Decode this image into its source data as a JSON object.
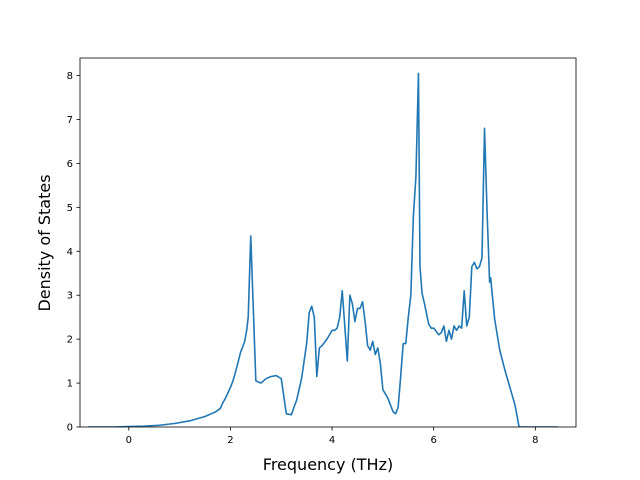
{
  "chart_data": {
    "type": "line",
    "title": "",
    "xlabel": "Frequency (THz)",
    "ylabel": "Density of States",
    "xlim": [
      -0.96,
      8.8
    ],
    "ylim": [
      0,
      8.4
    ],
    "xticks": [
      0,
      2,
      4,
      6,
      8
    ],
    "yticks": [
      0,
      1,
      2,
      3,
      4,
      5,
      6,
      7,
      8
    ],
    "grid": false,
    "series": [
      {
        "color": "#1f77b4",
        "x": [
          -0.8,
          -0.3,
          0,
          0.3,
          0.6,
          0.9,
          1.2,
          1.5,
          1.7,
          1.8,
          1.85,
          1.9,
          2.0,
          2.05,
          2.1,
          2.2,
          2.25,
          2.28,
          2.32,
          2.35,
          2.4,
          2.5,
          2.6,
          2.7,
          2.8,
          2.9,
          3.0,
          3.1,
          3.2,
          3.25,
          3.3,
          3.4,
          3.5,
          3.55,
          3.6,
          3.65,
          3.7,
          3.75,
          3.8,
          3.9,
          4.0,
          4.05,
          4.1,
          4.15,
          4.2,
          4.25,
          4.3,
          4.35,
          4.4,
          4.45,
          4.5,
          4.55,
          4.6,
          4.65,
          4.7,
          4.75,
          4.8,
          4.85,
          4.9,
          4.95,
          5.0,
          5.1,
          5.2,
          5.25,
          5.3,
          5.35,
          5.4,
          5.45,
          5.5,
          5.55,
          5.6,
          5.65,
          5.7,
          5.73,
          5.77,
          5.82,
          5.9,
          5.95,
          6.0,
          6.1,
          6.15,
          6.2,
          6.25,
          6.3,
          6.35,
          6.4,
          6.45,
          6.5,
          6.55,
          6.6,
          6.65,
          6.7,
          6.75,
          6.8,
          6.85,
          6.9,
          6.95,
          7.0,
          7.05,
          7.1,
          7.12,
          7.2,
          7.3,
          7.4,
          7.5,
          7.6,
          7.68,
          7.72,
          7.9,
          8.45
        ],
        "y": [
          0,
          0,
          0.01,
          0.02,
          0.04,
          0.08,
          0.14,
          0.24,
          0.34,
          0.42,
          0.55,
          0.65,
          0.9,
          1.05,
          1.25,
          1.7,
          1.85,
          1.95,
          2.2,
          2.5,
          4.35,
          1.05,
          1.0,
          1.1,
          1.15,
          1.17,
          1.1,
          0.3,
          0.28,
          0.45,
          0.6,
          1.1,
          1.9,
          2.6,
          2.75,
          2.5,
          1.15,
          1.8,
          1.85,
          2.0,
          2.2,
          2.2,
          2.25,
          2.5,
          3.1,
          2.3,
          1.5,
          3.0,
          2.8,
          2.4,
          2.7,
          2.7,
          2.85,
          2.4,
          1.85,
          1.75,
          1.95,
          1.65,
          1.8,
          1.45,
          0.85,
          0.65,
          0.35,
          0.3,
          0.45,
          1.15,
          1.9,
          1.9,
          2.5,
          3.0,
          4.8,
          5.7,
          8.05,
          3.65,
          3.05,
          2.8,
          2.35,
          2.25,
          2.25,
          2.1,
          2.15,
          2.3,
          1.95,
          2.2,
          2.0,
          2.3,
          2.2,
          2.3,
          2.25,
          3.1,
          2.3,
          2.5,
          3.65,
          3.75,
          3.6,
          3.65,
          3.85,
          6.8,
          4.9,
          3.3,
          3.4,
          2.45,
          1.75,
          1.3,
          0.9,
          0.5,
          0.0,
          0.0,
          0.0,
          0.0
        ]
      }
    ]
  }
}
